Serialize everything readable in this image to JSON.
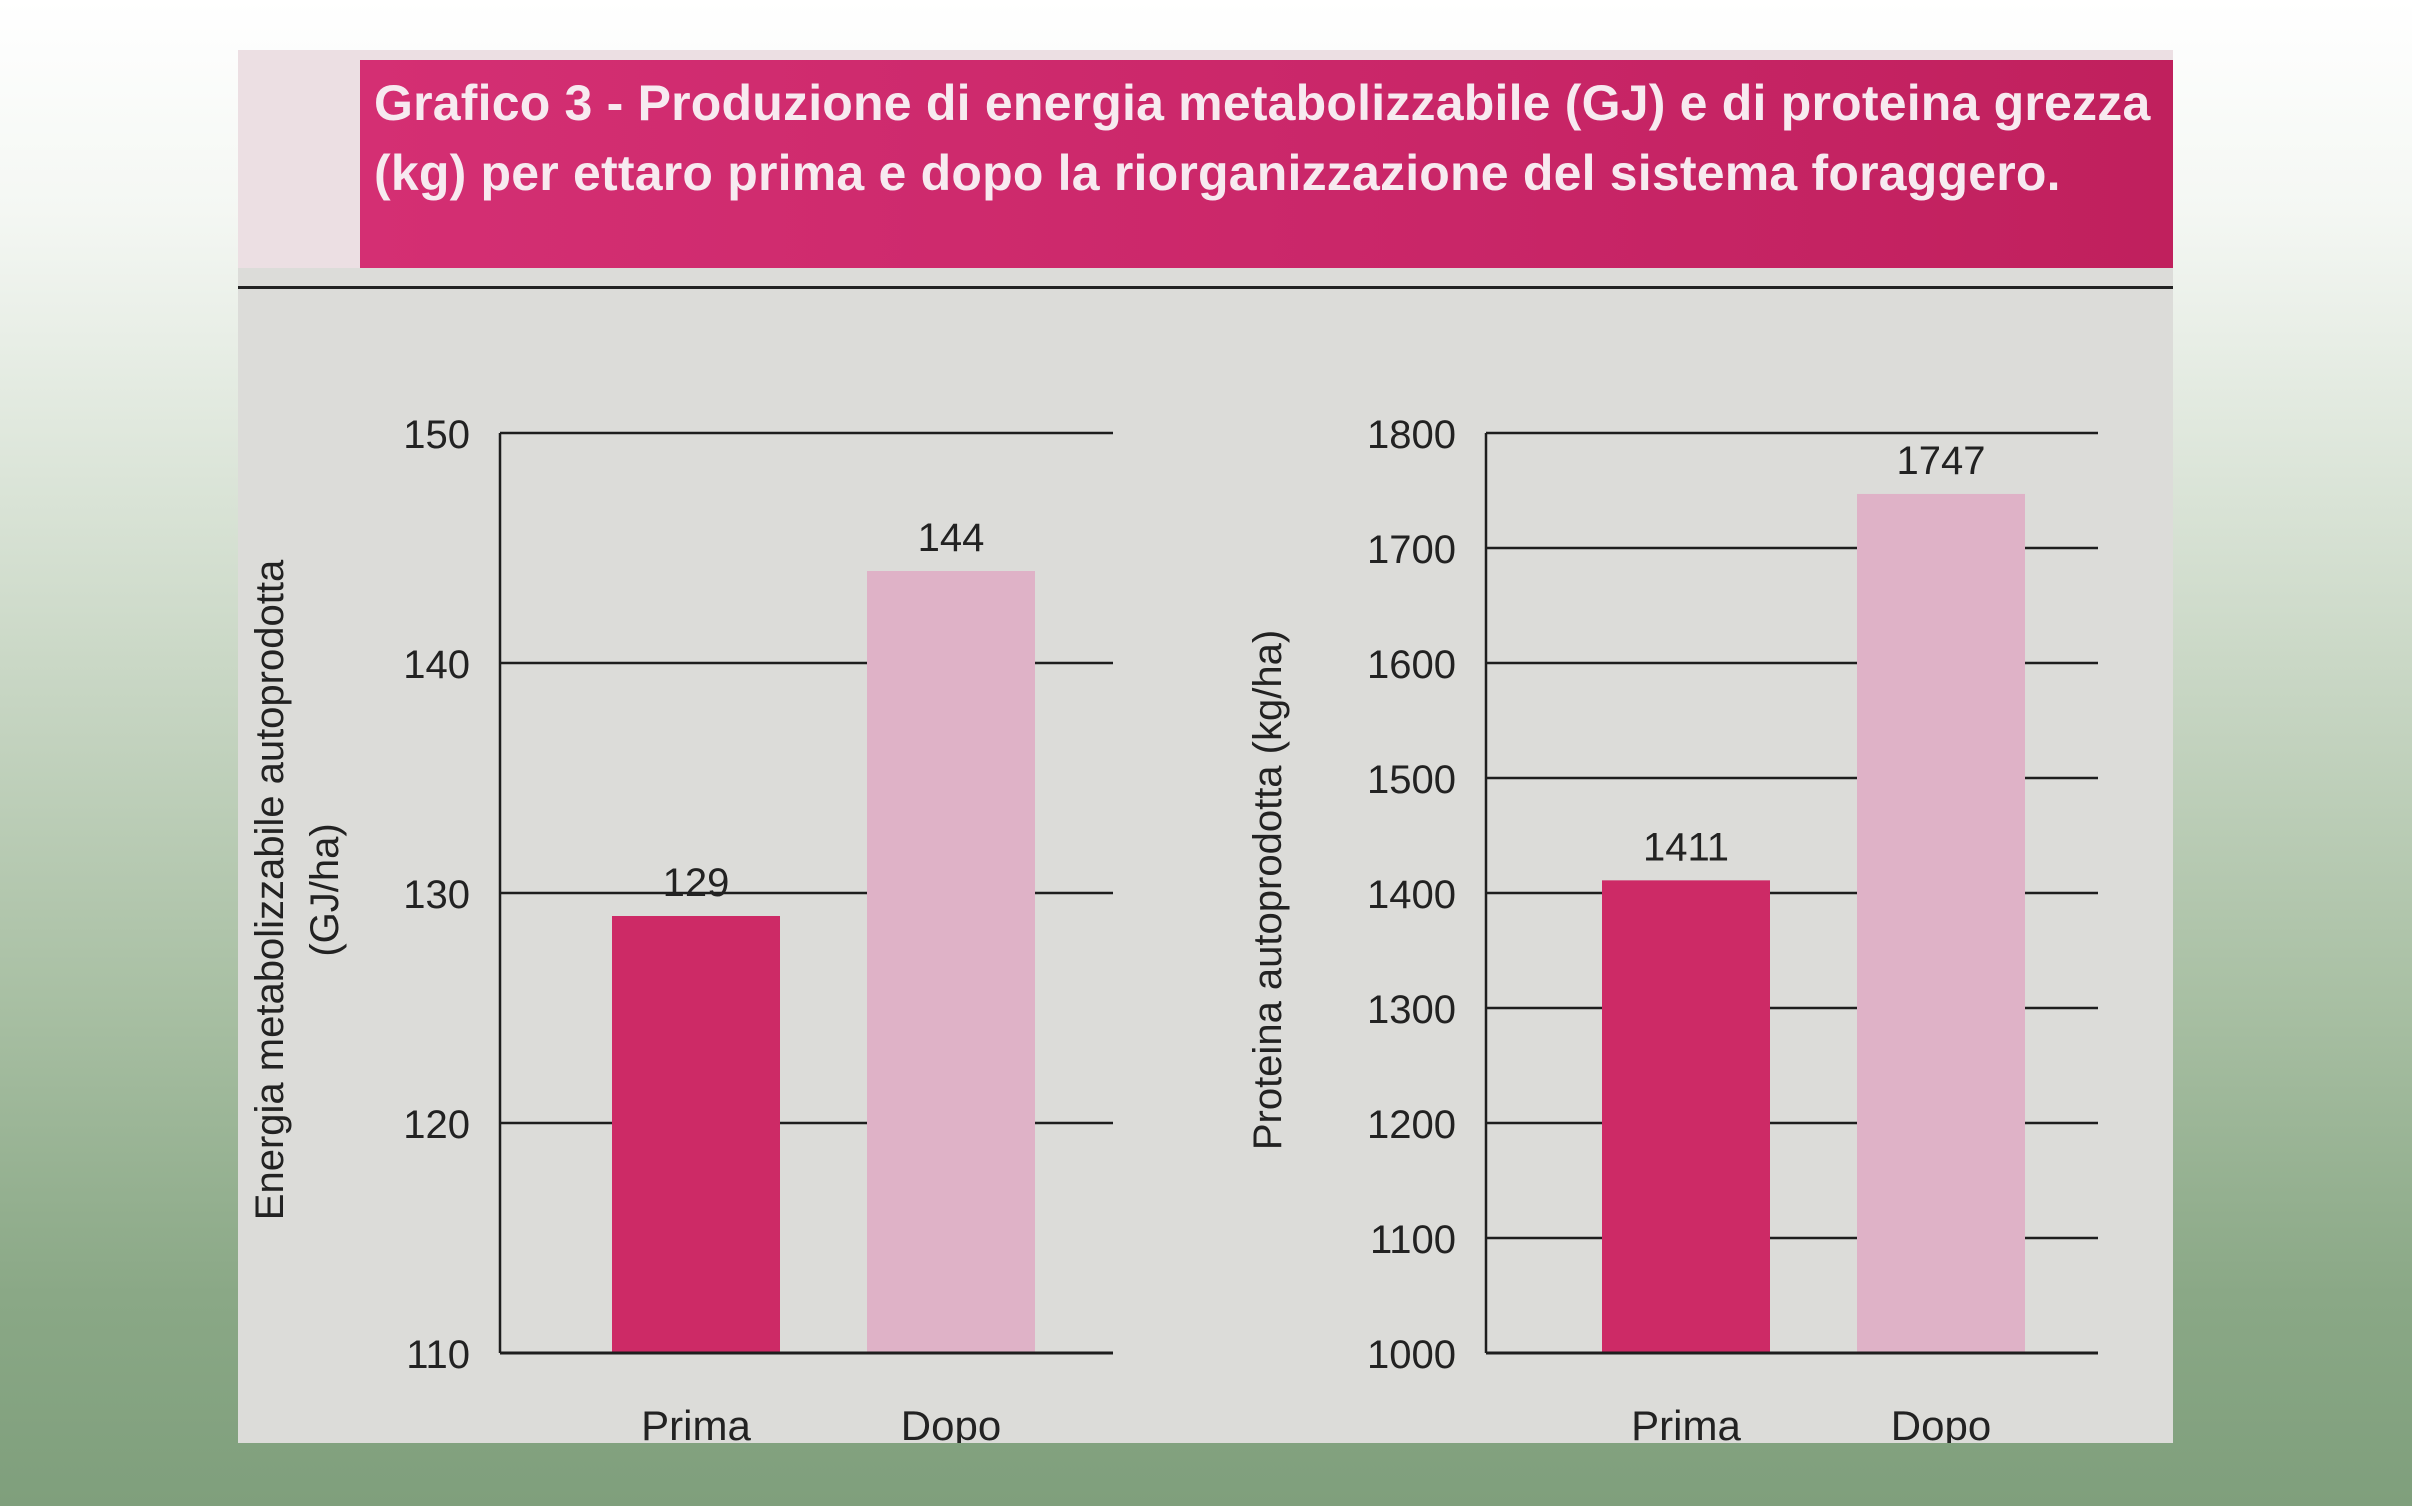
{
  "title": "Grafico 3 - Produzione di energia metabolizzabile (GJ) e di proteina grezza (kg) per ettaro prima e dopo la riorganizzazione del sistema foraggero.",
  "colors": {
    "title_band": "#c92668",
    "bar_prima": "#cd2a66",
    "bar_dopo": "#dfb2c7",
    "chart_bg": "#dcdcd9"
  },
  "chart_data": [
    {
      "type": "bar",
      "categories": [
        "Prima",
        "Dopo"
      ],
      "values": [
        129,
        144
      ],
      "data_labels": [
        "129",
        "144"
      ],
      "ylabel_line1": "Energia metabolizzabile autoprodotta",
      "ylabel_line2": "(GJ/ha)",
      "ylim": [
        110,
        150
      ],
      "yticks": [
        110,
        120,
        130,
        140,
        150
      ],
      "grid": true
    },
    {
      "type": "bar",
      "categories": [
        "Prima",
        "Dopo"
      ],
      "values": [
        1411,
        1747
      ],
      "data_labels": [
        "1411",
        "1747"
      ],
      "ylabel_line1": "Proteina autoprodotta (kg/ha)",
      "ylabel_line2": "",
      "ylim": [
        1000,
        1800
      ],
      "yticks": [
        1000,
        1100,
        1200,
        1300,
        1400,
        1500,
        1600,
        1700,
        1800
      ],
      "grid": true
    }
  ]
}
